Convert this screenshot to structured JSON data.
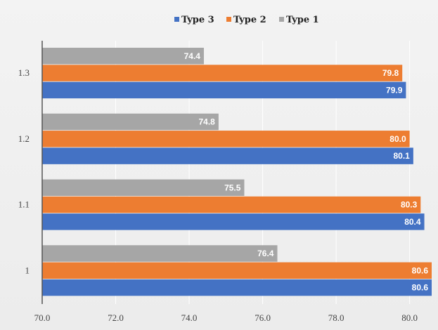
{
  "chart_data": {
    "type": "bar",
    "orientation": "horizontal",
    "categories": [
      "1.3",
      "1.2",
      "1.1",
      "1"
    ],
    "series": [
      {
        "name": "Type 1",
        "color": "#a6a6a6",
        "values": [
          74.4,
          74.8,
          75.5,
          76.4
        ],
        "labels": [
          "74.4",
          "74.8",
          "75.5",
          "76.4"
        ]
      },
      {
        "name": "Type 2",
        "color": "#ed7d31",
        "values": [
          79.8,
          80.0,
          80.3,
          80.6
        ],
        "labels": [
          "79.8",
          "80.0",
          "80.3",
          "80.6"
        ]
      },
      {
        "name": "Type 3",
        "color": "#4472c4",
        "values": [
          79.9,
          80.1,
          80.4,
          80.6
        ],
        "labels": [
          "79.9",
          "80.1",
          "80.4",
          "80.6"
        ]
      }
    ],
    "legend_order": [
      "Type 3",
      "Type 2",
      "Type 1"
    ],
    "legend_placement": "top-center",
    "xlim": [
      70,
      80.6
    ],
    "x_ticks": [
      70,
      72,
      74,
      76,
      78,
      80
    ],
    "x_tick_labels": [
      "70.0",
      "72.0",
      "74.0",
      "76.0",
      "78.0",
      "80.0"
    ],
    "grid": true,
    "title": "",
    "xlabel": "",
    "ylabel": ""
  }
}
